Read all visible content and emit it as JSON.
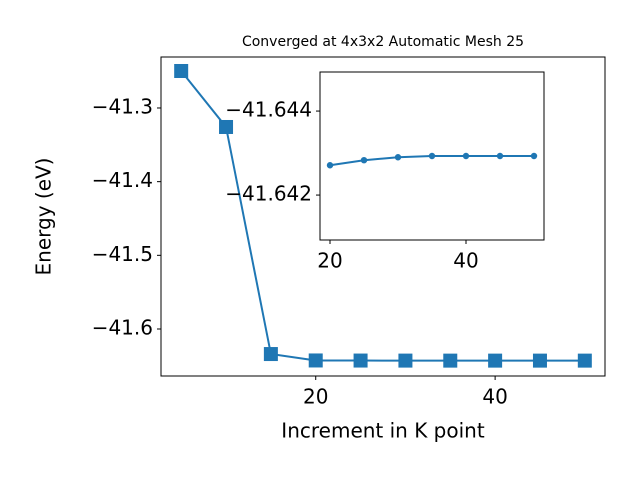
{
  "chart_data": [
    {
      "type": "line",
      "title": "Converged at 4x3x2 Automatic Mesh 25",
      "xlabel": "Increment in K point",
      "ylabel": "Energy (eV)",
      "x": [
        5,
        10,
        15,
        20,
        25,
        30,
        35,
        40,
        45,
        50
      ],
      "series": [
        {
          "color": "#1f77b4",
          "marker": "square",
          "values": [
            -41.2498,
            -41.3258,
            -41.634,
            -41.64271,
            -41.64283,
            -41.6429,
            -41.64293,
            -41.64293,
            -41.64293,
            -41.64293
          ]
        }
      ],
      "xlim": [
        2.75,
        52.25
      ],
      "ylim": [
        -41.6638,
        -41.2308
      ],
      "xticks": [
        20,
        40
      ],
      "yticks": [
        {
          "value": -41.3,
          "label": "−41.3"
        },
        {
          "value": -41.4,
          "label": "−41.4"
        },
        {
          "value": -41.5,
          "label": "−41.5"
        },
        {
          "value": -41.6,
          "label": "−41.6"
        }
      ]
    },
    {
      "type": "line",
      "x": [
        20,
        25,
        30,
        35,
        40,
        45,
        50
      ],
      "series": [
        {
          "color": "#1f77b4",
          "marker": "circle",
          "values": [
            -41.64271,
            -41.64283,
            -41.6429,
            -41.64293,
            -41.64293,
            -41.64293,
            -41.64293
          ]
        }
      ],
      "xlim": [
        18.53,
        51.47
      ],
      "ylim": [
        -41.64093,
        -41.64493
      ],
      "xticks": [
        20,
        40
      ],
      "yticks": [
        {
          "value": -41.644,
          "label": "−41.644"
        },
        {
          "value": -41.642,
          "label": "−41.642"
        }
      ]
    }
  ]
}
